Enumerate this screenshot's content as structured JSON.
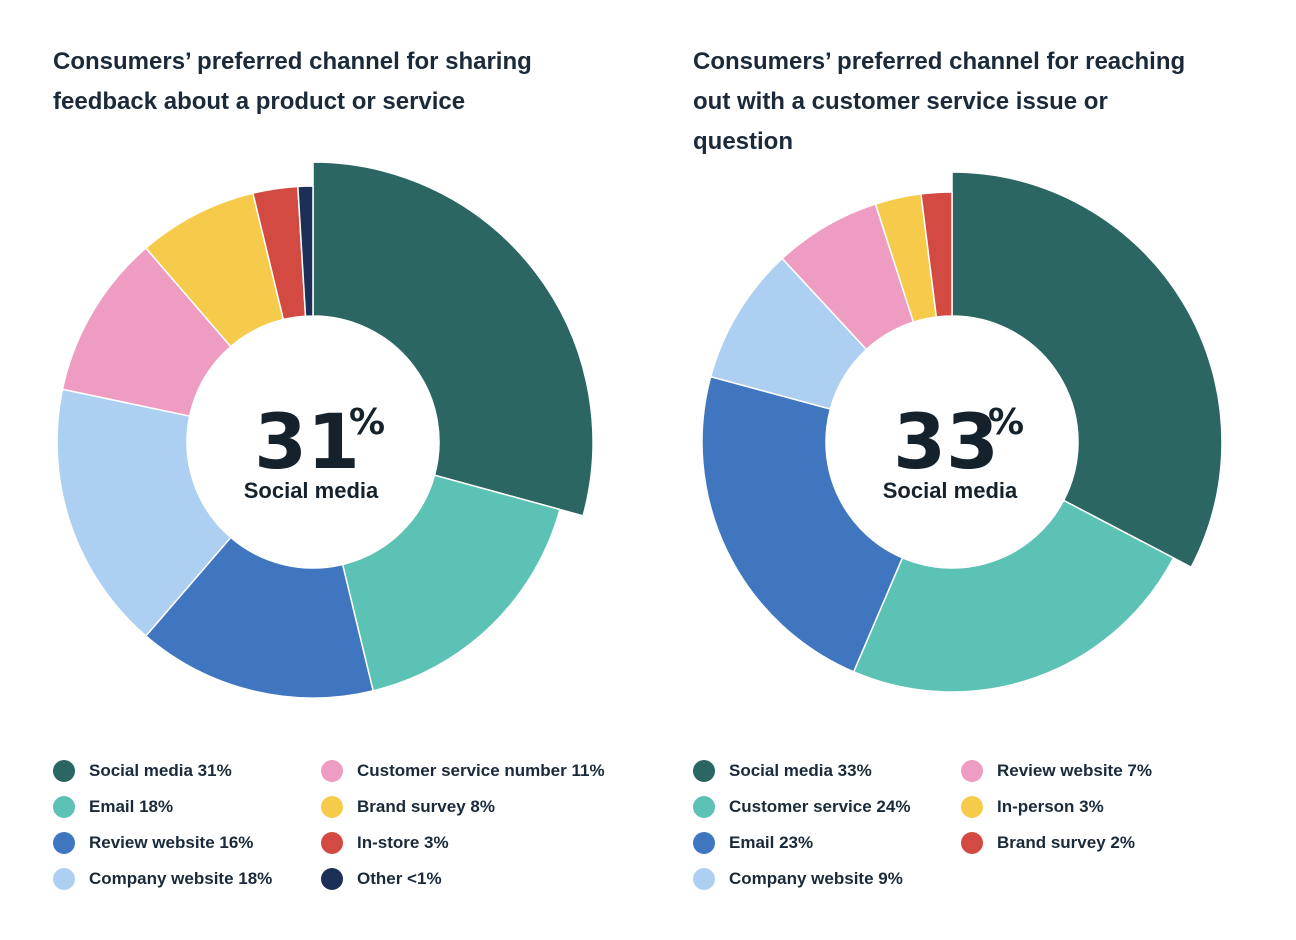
{
  "colors": {
    "dark_teal": "#2b6663",
    "mint": "#5cc2b5",
    "blue": "#3f76bf",
    "light_blue": "#add0f2",
    "pink": "#ef9cc2",
    "yellow": "#f6cb4b",
    "red": "#d24a41",
    "navy": "#1c2f57"
  },
  "chart_data": [
    {
      "type": "pie",
      "variant": "donut",
      "title": "Consumers’ preferred channel for sharing feedback about a product or service",
      "center_value": "31",
      "center_unit": "%",
      "center_label": "Social media",
      "slices": [
        {
          "label": "Social media",
          "value": 31,
          "color": "#2b6663",
          "legend": "31%"
        },
        {
          "label": "Email",
          "value": 18,
          "color": "#5cc2b5",
          "legend": "18%"
        },
        {
          "label": "Review website",
          "value": 16,
          "color": "#3f76bf",
          "legend": "16%"
        },
        {
          "label": "Company website",
          "value": 18,
          "color": "#add0f2",
          "legend": "18%"
        },
        {
          "label": "Customer service number",
          "value": 11,
          "color": "#ef9cc2",
          "legend": "11%"
        },
        {
          "label": "Brand survey",
          "value": 8,
          "color": "#f6cb4b",
          "legend": "8%"
        },
        {
          "label": "In-store",
          "value": 3,
          "color": "#d24a41",
          "legend": "3%"
        },
        {
          "label": "Other",
          "value": 1,
          "color": "#1c2f57",
          "legend": "<1%"
        }
      ],
      "legend_columns": [
        [
          0,
          1,
          2,
          3
        ],
        [
          4,
          5,
          6,
          7
        ]
      ]
    },
    {
      "type": "pie",
      "variant": "donut",
      "title": "Consumers’ preferred channel for reaching out with a customer service issue or question",
      "center_value": "33",
      "center_unit": "%",
      "center_label": "Social media",
      "slices": [
        {
          "label": "Social media",
          "value": 33,
          "color": "#2b6663",
          "legend": "33%"
        },
        {
          "label": "Customer service",
          "value": 24,
          "color": "#5cc2b5",
          "legend": "24%"
        },
        {
          "label": "Email",
          "value": 23,
          "color": "#3f76bf",
          "legend": "23%"
        },
        {
          "label": "Company website",
          "value": 9,
          "color": "#add0f2",
          "legend": "9%"
        },
        {
          "label": "Review website",
          "value": 7,
          "color": "#ef9cc2",
          "legend": "7%"
        },
        {
          "label": "In-person",
          "value": 3,
          "color": "#f6cb4b",
          "legend": "3%"
        },
        {
          "label": "Brand survey",
          "value": 2,
          "color": "#d24a41",
          "legend": "2%"
        }
      ],
      "legend_columns": [
        [
          0,
          1,
          2,
          3
        ],
        [
          4,
          5,
          6
        ]
      ]
    }
  ]
}
